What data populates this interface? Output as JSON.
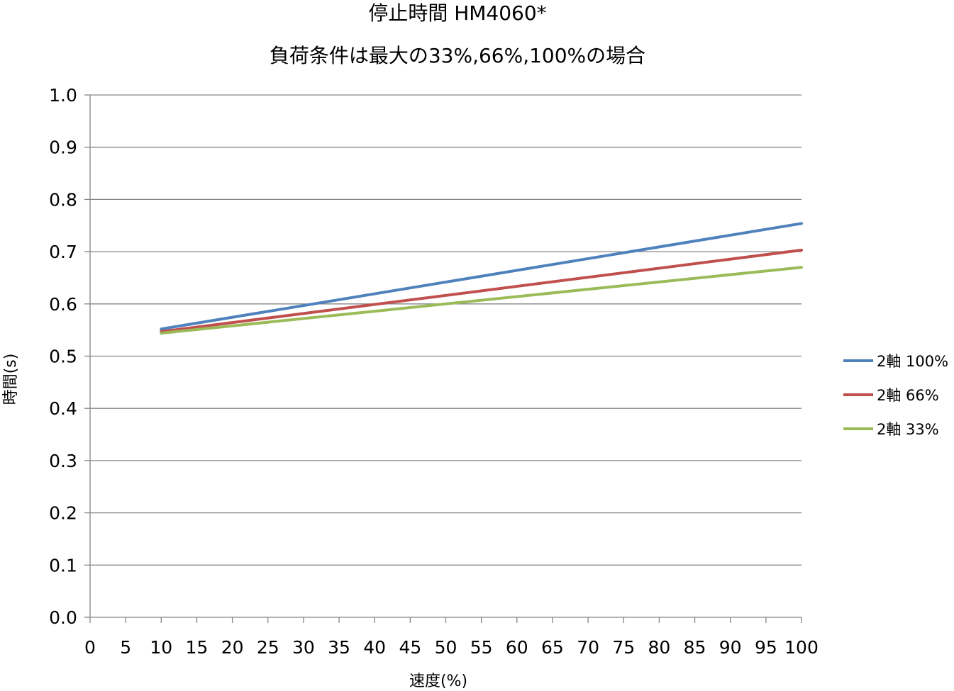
{
  "chart_data": {
    "type": "line",
    "title": "停止時間 HM4060*",
    "subtitle": "負荷条件は最大の33%,66%,100%の場合",
    "xlabel": "速度(%)",
    "ylabel": "時間(s)",
    "xlim": [
      0,
      100
    ],
    "ylim": [
      0,
      1.0
    ],
    "x_ticks": [
      "0",
      "5",
      "10",
      "15",
      "20",
      "25",
      "30",
      "35",
      "40",
      "45",
      "50",
      "55",
      "60",
      "65",
      "70",
      "75",
      "80",
      "85",
      "90",
      "95",
      "100"
    ],
    "y_ticks": [
      "0.0",
      "0.1",
      "0.2",
      "0.3",
      "0.4",
      "0.5",
      "0.6",
      "0.7",
      "0.8",
      "0.9",
      "1.0"
    ],
    "grid": true,
    "legend_position": "right",
    "series": [
      {
        "name": "2軸 100%",
        "color": "#4f81bd",
        "x": [
          10,
          100
        ],
        "y": [
          0.552,
          0.754
        ]
      },
      {
        "name": "2軸 66%",
        "color": "#c0504d",
        "x": [
          10,
          100
        ],
        "y": [
          0.547,
          0.703
        ]
      },
      {
        "name": "2軸 33%",
        "color": "#9bbb59",
        "x": [
          10,
          100
        ],
        "y": [
          0.544,
          0.67
        ]
      }
    ]
  }
}
